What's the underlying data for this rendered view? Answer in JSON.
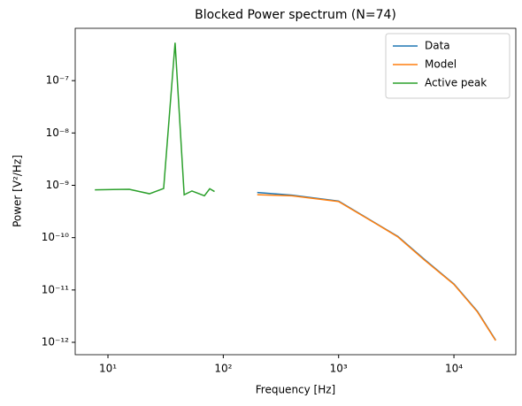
{
  "chart_data": {
    "type": "line",
    "title": "Blocked Power spectrum (N=74)",
    "x_label": "Frequency [Hz]",
    "y_label": "Power [V²/Hz]",
    "x_scale": "log",
    "y_scale": "log",
    "xlim": [
      5.2,
      34400
    ],
    "ylim": [
      5.8e-13,
      1e-06
    ],
    "xticks": [
      {
        "value": 10,
        "label": "10¹"
      },
      {
        "value": 100,
        "label": "10²"
      },
      {
        "value": 1000,
        "label": "10³"
      },
      {
        "value": 10000,
        "label": "10⁴"
      }
    ],
    "yticks": [
      {
        "value": 1e-12,
        "label": "10⁻¹²"
      },
      {
        "value": 1e-11,
        "label": "10⁻¹¹"
      },
      {
        "value": 1e-10,
        "label": "10⁻¹⁰"
      },
      {
        "value": 1e-09,
        "label": "10⁻⁹"
      },
      {
        "value": 1e-08,
        "label": "10⁻⁸"
      },
      {
        "value": 1e-07,
        "label": "10⁻⁷"
      }
    ],
    "legend": "upper right",
    "series": [
      {
        "name": "Data",
        "color": "#1f77b4",
        "x": [
          197,
          394,
          1000,
          2300,
          3270,
          5500,
          10000,
          16000,
          23000
        ],
        "values": [
          7.3e-10,
          6.5e-10,
          5e-10,
          1.67e-10,
          1.05e-10,
          3.9e-11,
          1.3e-11,
          3.9e-12,
          1.1e-12
        ]
      },
      {
        "name": "Model",
        "color": "#ff7f0e",
        "x": [
          197,
          394,
          1000,
          2300,
          3270,
          5500,
          10000,
          16000,
          23000
        ],
        "values": [
          6.6e-10,
          6.3e-10,
          4.9e-10,
          1.65e-10,
          1.03e-10,
          3.8e-11,
          1.28e-11,
          3.8e-12,
          1.08e-12
        ]
      },
      {
        "name": "Active peak",
        "color": "#2ca02c",
        "x": [
          7.7,
          15.3,
          22.9,
          30.4,
          38.2,
          45.8,
          53.5,
          68.6,
          76.3,
          84
        ],
        "values": [
          8.2e-10,
          8.4e-10,
          6.9e-10,
          8.7e-10,
          5.3e-07,
          6.6e-10,
          7.8e-10,
          6.3e-10,
          8.6e-10,
          7.6e-10
        ]
      }
    ]
  }
}
